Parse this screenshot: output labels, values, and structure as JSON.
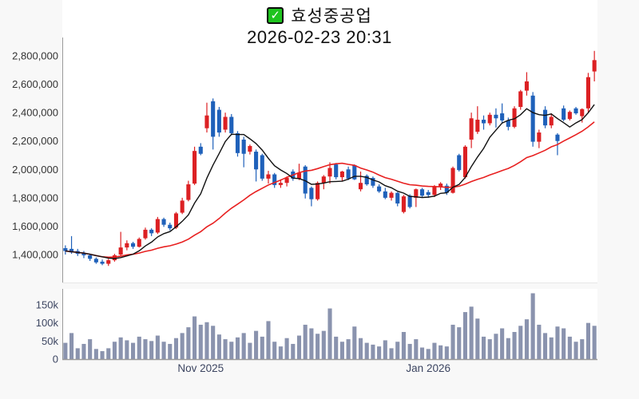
{
  "title": {
    "check_glyph": "✓",
    "stock_name": "효성중공업",
    "datetime": "2026-02-23 20:31"
  },
  "colors": {
    "up_candle": "#dc2023",
    "down_candle": "#1f61ba",
    "ma_fast_line": "#111111",
    "ma_slow_line": "#e82020",
    "volume_bar": "#8a93ae",
    "plot_bg": "#ffffff",
    "page_bg": "#f8f8f8",
    "axis_line": "#9a9a9a",
    "price_label": "#333333",
    "date_label": "#3c4561",
    "checkbox_green": "#1ec41e"
  },
  "chart_data": {
    "type": "candlestick",
    "subcharts": [
      "price",
      "volume"
    ],
    "grid": false,
    "legend": false,
    "price_axis": {
      "labels": [
        "2,800,000",
        "2,600,000",
        "2,400,000",
        "2,200,000",
        "2,000,000",
        "1,800,000",
        "1,600,000",
        "1,400,000"
      ],
      "values": [
        2800000,
        2600000,
        2400000,
        2200000,
        2000000,
        1800000,
        1600000,
        1400000
      ]
    },
    "volume_axis": {
      "labels": [
        "150k",
        "100k",
        "50k",
        "0"
      ],
      "values": [
        150000,
        100000,
        50000,
        0
      ]
    },
    "x_ticks": [
      {
        "index": 22,
        "label": "Nov 2025"
      },
      {
        "index": 59,
        "label": "Jan 2026"
      }
    ],
    "ma_fast_window": 7,
    "ma_slow_window": 25,
    "candles_ohlc": [
      [
        1445000,
        1465000,
        1400000,
        1425000
      ],
      [
        1440000,
        1530000,
        1405000,
        1415000
      ],
      [
        1425000,
        1440000,
        1390000,
        1405000
      ],
      [
        1410000,
        1425000,
        1375000,
        1395000
      ],
      [
        1395000,
        1400000,
        1355000,
        1370000
      ],
      [
        1370000,
        1380000,
        1335000,
        1345000
      ],
      [
        1350000,
        1365000,
        1325000,
        1335000
      ],
      [
        1335000,
        1370000,
        1320000,
        1360000
      ],
      [
        1360000,
        1405000,
        1350000,
        1395000
      ],
      [
        1400000,
        1560000,
        1390000,
        1450000
      ],
      [
        1450000,
        1500000,
        1430000,
        1480000
      ],
      [
        1480000,
        1490000,
        1440000,
        1455000
      ],
      [
        1455000,
        1520000,
        1450000,
        1510000
      ],
      [
        1515000,
        1590000,
        1505000,
        1575000
      ],
      [
        1575000,
        1585000,
        1530000,
        1550000
      ],
      [
        1555000,
        1665000,
        1545000,
        1650000
      ],
      [
        1650000,
        1660000,
        1595000,
        1610000
      ],
      [
        1610000,
        1625000,
        1570000,
        1585000
      ],
      [
        1590000,
        1700000,
        1580000,
        1690000
      ],
      [
        1695000,
        1800000,
        1685000,
        1780000
      ],
      [
        1785000,
        1920000,
        1775000,
        1895000
      ],
      [
        1900000,
        2160000,
        1890000,
        2130000
      ],
      [
        2160000,
        2185000,
        2100000,
        2110000
      ],
      [
        2290000,
        2470000,
        2260000,
        2380000
      ],
      [
        2480000,
        2500000,
        2140000,
        2230000
      ],
      [
        2420000,
        2440000,
        2230000,
        2260000
      ],
      [
        2280000,
        2400000,
        2260000,
        2370000
      ],
      [
        2370000,
        2390000,
        2240000,
        2255000
      ],
      [
        2255000,
        2270000,
        2090000,
        2115000
      ],
      [
        2210000,
        2230000,
        2015000,
        2110000
      ],
      [
        2125000,
        2175000,
        2105000,
        2165000
      ],
      [
        2125000,
        2140000,
        1915000,
        2000000
      ],
      [
        2100000,
        2110000,
        1920000,
        1935000
      ],
      [
        1935000,
        1990000,
        1900000,
        1965000
      ],
      [
        1965000,
        1975000,
        1870000,
        1890000
      ],
      [
        1890000,
        1930000,
        1870000,
        1905000
      ],
      [
        1905000,
        1950000,
        1880000,
        1940000
      ],
      [
        1985000,
        2000000,
        1920000,
        1935000
      ],
      [
        1935000,
        2040000,
        1925000,
        1975000
      ],
      [
        2020000,
        2030000,
        1795000,
        1830000
      ],
      [
        1870000,
        1880000,
        1740000,
        1790000
      ],
      [
        1790000,
        1915000,
        1780000,
        1905000
      ],
      [
        1905000,
        1960000,
        1860000,
        1950000
      ],
      [
        1950000,
        2050000,
        1900000,
        2010000
      ],
      [
        2035000,
        2045000,
        1930000,
        1945000
      ],
      [
        1945000,
        1990000,
        1920000,
        1985000
      ],
      [
        2000000,
        2020000,
        1925000,
        1935000
      ],
      [
        2030000,
        2035000,
        1925000,
        1930000
      ],
      [
        1860000,
        1985000,
        1845000,
        1905000
      ],
      [
        1955000,
        1965000,
        1885000,
        1895000
      ],
      [
        1940000,
        1950000,
        1870000,
        1885000
      ],
      [
        1880000,
        1895000,
        1835000,
        1845000
      ],
      [
        1845000,
        1870000,
        1790000,
        1800000
      ],
      [
        1800000,
        1845000,
        1780000,
        1835000
      ],
      [
        1835000,
        1840000,
        1740000,
        1760000
      ],
      [
        1700000,
        1820000,
        1690000,
        1810000
      ],
      [
        1815000,
        1825000,
        1725000,
        1735000
      ],
      [
        1800000,
        1865000,
        1735000,
        1860000
      ],
      [
        1860000,
        1870000,
        1800000,
        1815000
      ],
      [
        1840000,
        1855000,
        1800000,
        1820000
      ],
      [
        1820000,
        1890000,
        1805000,
        1880000
      ],
      [
        1880000,
        1910000,
        1855000,
        1900000
      ],
      [
        1885000,
        1900000,
        1820000,
        1835000
      ],
      [
        1835000,
        2020000,
        1830000,
        2010000
      ],
      [
        2100000,
        2110000,
        1985000,
        1995000
      ],
      [
        1945000,
        2170000,
        1935000,
        2160000
      ],
      [
        2210000,
        2400000,
        2150000,
        2360000
      ],
      [
        2265000,
        2445000,
        2250000,
        2350000
      ],
      [
        2350000,
        2380000,
        2280000,
        2325000
      ],
      [
        2325000,
        2400000,
        2310000,
        2385000
      ],
      [
        2385000,
        2430000,
        2295000,
        2360000
      ],
      [
        2395000,
        2465000,
        2330000,
        2345000
      ],
      [
        2345000,
        2365000,
        2275000,
        2300000
      ],
      [
        2300000,
        2445000,
        2290000,
        2430000
      ],
      [
        2440000,
        2560000,
        2420000,
        2550000
      ],
      [
        2555000,
        2685000,
        2520000,
        2620000
      ],
      [
        2520000,
        2545000,
        2160000,
        2195000
      ],
      [
        2195000,
        2280000,
        2150000,
        2260000
      ],
      [
        2420000,
        2445000,
        2290000,
        2310000
      ],
      [
        2310000,
        2395000,
        2290000,
        2370000
      ],
      [
        2245000,
        2255000,
        2100000,
        2200000
      ],
      [
        2430000,
        2450000,
        2340000,
        2350000
      ],
      [
        2355000,
        2415000,
        2345000,
        2405000
      ],
      [
        2430000,
        2440000,
        2385000,
        2395000
      ],
      [
        2375000,
        2430000,
        2330000,
        2425000
      ],
      [
        2430000,
        2680000,
        2400000,
        2650000
      ],
      [
        2690000,
        2835000,
        2620000,
        2770000
      ]
    ],
    "volumes": [
      45000,
      72000,
      30000,
      42000,
      55000,
      28000,
      22000,
      30000,
      48000,
      60000,
      52000,
      45000,
      62000,
      55000,
      50000,
      65000,
      48000,
      42000,
      58000,
      72000,
      88000,
      118000,
      95000,
      102000,
      92000,
      68000,
      55000,
      48000,
      60000,
      72000,
      45000,
      78000,
      62000,
      105000,
      48000,
      35000,
      58000,
      42000,
      65000,
      95000,
      85000,
      70000,
      78000,
      140000,
      62000,
      48000,
      55000,
      90000,
      58000,
      45000,
      40000,
      35000,
      52000,
      30000,
      48000,
      75000,
      42000,
      55000,
      32000,
      28000,
      45000,
      38000,
      35000,
      95000,
      88000,
      130000,
      145000,
      112000,
      62000,
      55000,
      70000,
      85000,
      58000,
      75000,
      92000,
      110000,
      182000,
      95000,
      72000,
      60000,
      90000,
      85000,
      62000,
      48000,
      55000,
      100000,
      92000
    ]
  }
}
